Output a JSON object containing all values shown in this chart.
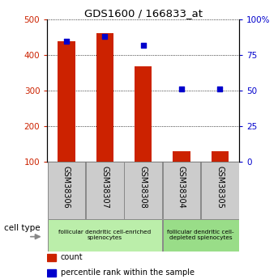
{
  "title": "GDS1600 / 166833_at",
  "samples": [
    "GSM38306",
    "GSM38307",
    "GSM38308",
    "GSM38304",
    "GSM38305"
  ],
  "counts": [
    440,
    462,
    368,
    130,
    130
  ],
  "percentiles": [
    85,
    88,
    82,
    51,
    51
  ],
  "ylim_left": [
    100,
    500
  ],
  "ylim_right": [
    0,
    100
  ],
  "yticks_left": [
    100,
    200,
    300,
    400,
    500
  ],
  "yticks_right": [
    0,
    25,
    50,
    75,
    100
  ],
  "yticklabels_right": [
    "0",
    "25",
    "50",
    "75",
    "100%"
  ],
  "bar_color": "#cc2200",
  "dot_color": "#0000cc",
  "groups": [
    {
      "label": "follicular dendritic cell-enriched\nsplenocytes",
      "indices": [
        0,
        1,
        2
      ]
    },
    {
      "label": "follicular dendritic cell-\ndepleted splenocytes",
      "indices": [
        3,
        4
      ]
    }
  ],
  "group_colors": [
    "#bbeeaa",
    "#99dd88"
  ],
  "sample_box_color": "#cccccc",
  "tick_label_color_left": "#cc2200",
  "tick_label_color_right": "#0000cc",
  "legend_items": [
    {
      "color": "#cc2200",
      "label": "count"
    },
    {
      "color": "#0000cc",
      "label": "percentile rank within the sample"
    }
  ],
  "cell_type_label": "cell type",
  "bar_width": 0.45
}
